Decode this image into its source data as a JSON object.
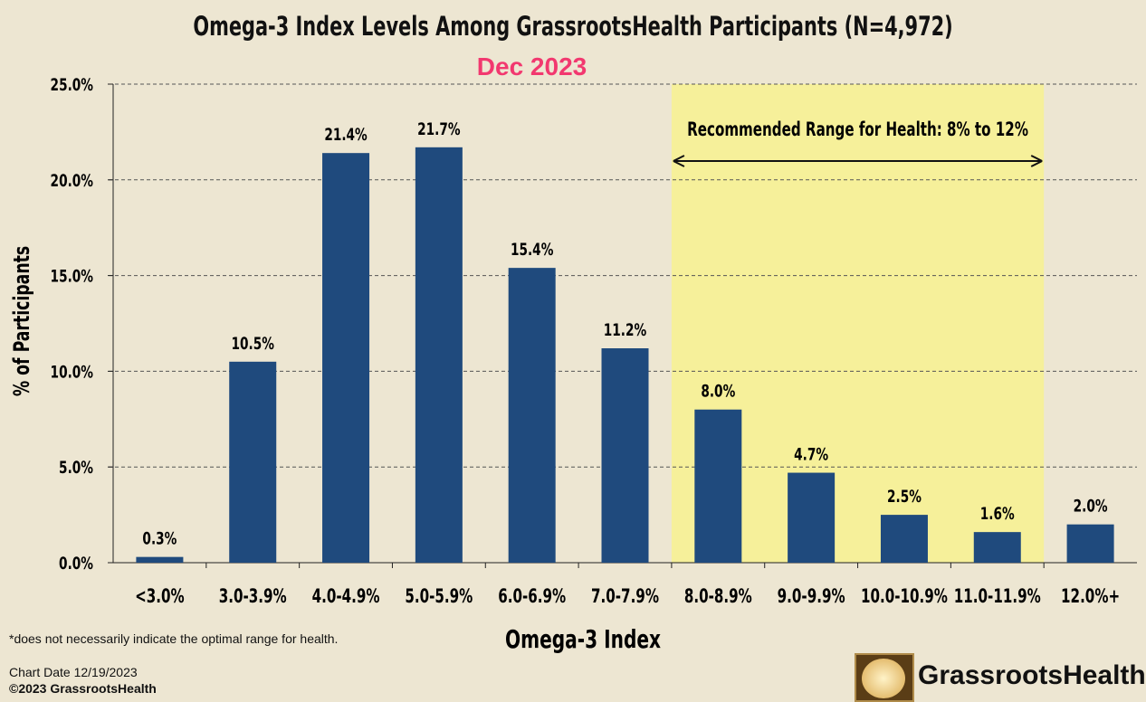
{
  "chart_data": {
    "type": "bar",
    "title": "Omega-3 Index Levels Among GrassrootsHealth Participants (N=4,972)",
    "subtitle": "Dec 2023",
    "xlabel": "Omega-3 Index",
    "ylabel": "% of Participants",
    "ylim": [
      0,
      25
    ],
    "yticks": [
      "0.0%",
      "5.0%",
      "10.0%",
      "15.0%",
      "20.0%",
      "25.0%"
    ],
    "categories": [
      "<3.0%",
      "3.0-3.9%",
      "4.0-4.9%",
      "5.0-5.9%",
      "6.0-6.9%",
      "7.0-7.9%",
      "8.0-8.9%",
      "9.0-9.9%",
      "10.0-10.9%",
      "11.0-11.9%",
      "12.0%+"
    ],
    "values": [
      0.3,
      10.5,
      21.4,
      21.7,
      15.4,
      11.2,
      8.0,
      4.7,
      2.5,
      1.6,
      2.0
    ],
    "data_labels": [
      "0.3%",
      "10.5%",
      "21.4%",
      "21.7%",
      "15.4%",
      "11.2%",
      "8.0%",
      "4.7%",
      "2.5%",
      "1.6%",
      "2.0%"
    ],
    "highlight": {
      "label": "Recommended Range for Health: 8% to 12%",
      "from_category": 6,
      "to_category": 9
    },
    "grid": true,
    "colors": {
      "bar": "#1f4a7d",
      "highlight": "#f6f09a",
      "subtitle": "#f2386f"
    }
  },
  "footer": {
    "note": "*does not necessarily indicate the optimal range for health.",
    "chart_date": "Chart Date 12/19/2023",
    "copyright": "©2023 GrassrootsHealth",
    "brand": "GrassrootsHealth"
  }
}
